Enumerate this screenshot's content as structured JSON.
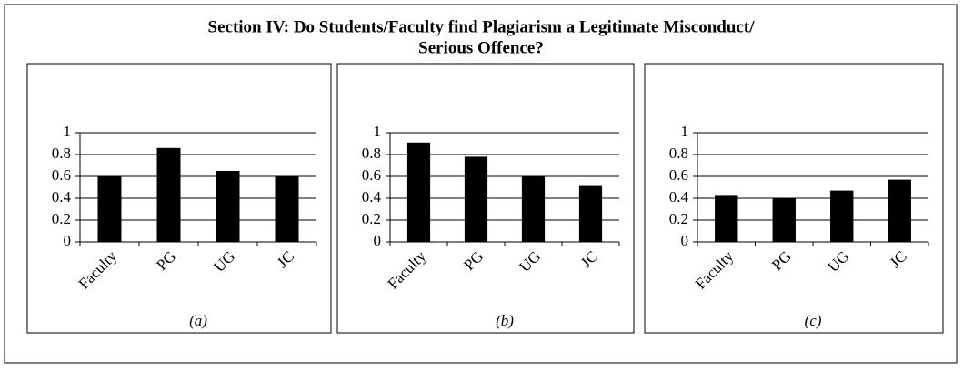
{
  "title": [
    "Section IV: Do Students/Faculty find Plagiarism a Legitimate Misconduct/",
    "Serious Offence?"
  ],
  "chart_data": [
    {
      "type": "bar",
      "label": "(a)",
      "categories": [
        "Faculty",
        "PG",
        "UG",
        "JC"
      ],
      "values": [
        0.6,
        0.86,
        0.65,
        0.6
      ],
      "color": "#000000",
      "ylim": [
        0,
        1
      ],
      "yticks": [
        0,
        0.2,
        0.4,
        0.6,
        0.8,
        1
      ],
      "grid": true
    },
    {
      "type": "bar",
      "label": "(b)",
      "categories": [
        "Faculty",
        "PG",
        "UG",
        "JC"
      ],
      "values": [
        0.91,
        0.78,
        0.6,
        0.52
      ],
      "color": "#000000",
      "ylim": [
        0,
        1
      ],
      "yticks": [
        0,
        0.2,
        0.4,
        0.6,
        0.8,
        1
      ],
      "grid": true
    },
    {
      "type": "bar",
      "label": "(c)",
      "categories": [
        "Faculty",
        "PG",
        "UG",
        "JC"
      ],
      "values": [
        0.43,
        0.4,
        0.47,
        0.57
      ],
      "color": "#000000",
      "ylim": [
        0,
        1
      ],
      "yticks": [
        0,
        0.2,
        0.4,
        0.6,
        0.8,
        1
      ],
      "grid": true
    }
  ]
}
